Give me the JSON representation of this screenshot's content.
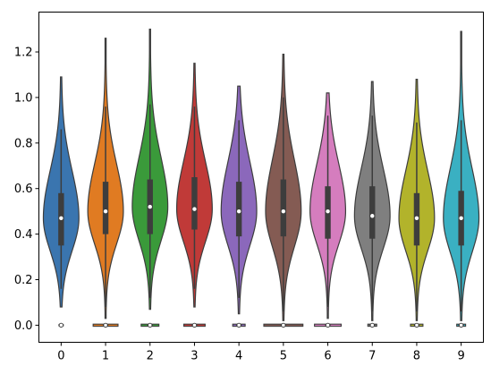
{
  "chart_data": {
    "type": "violin",
    "title": "",
    "xlabel": "",
    "ylabel": "",
    "categories": [
      "0",
      "1",
      "2",
      "3",
      "4",
      "5",
      "6",
      "7",
      "8",
      "9"
    ],
    "xlim": [
      -0.5,
      9.5
    ],
    "ylim": [
      -0.075,
      1.375
    ],
    "yticks": [
      0.0,
      0.2,
      0.4,
      0.6,
      0.8,
      1.0,
      1.2
    ],
    "ytick_labels": [
      "0.0",
      "0.2",
      "0.4",
      "0.6",
      "0.8",
      "1.0",
      "1.2"
    ],
    "grid": false,
    "legend": "none",
    "colors": [
      "#3a75af",
      "#e07b22",
      "#3a9a3a",
      "#c03a38",
      "#8b68bb",
      "#845b53",
      "#d57dbe",
      "#7f7f7f",
      "#b2b32b",
      "#3ab0c2"
    ],
    "violins": [
      {
        "category": "0",
        "min": 0.08,
        "max": 1.09,
        "q1": 0.35,
        "median": 0.47,
        "q3": 0.58,
        "whisker_low": 0.16,
        "whisker_high": 0.86,
        "zero_cluster_halfwidth": 0.0
      },
      {
        "category": "1",
        "min": 0.03,
        "max": 1.26,
        "q1": 0.4,
        "median": 0.5,
        "q3": 0.63,
        "whisker_low": 0.08,
        "whisker_high": 0.96,
        "zero_cluster_halfwidth": 0.28
      },
      {
        "category": "2",
        "min": 0.07,
        "max": 1.3,
        "q1": 0.4,
        "median": 0.52,
        "q3": 0.64,
        "whisker_low": 0.12,
        "whisker_high": 0.97,
        "zero_cluster_halfwidth": 0.2
      },
      {
        "category": "3",
        "min": 0.08,
        "max": 1.15,
        "q1": 0.42,
        "median": 0.51,
        "q3": 0.65,
        "whisker_low": 0.16,
        "whisker_high": 0.96,
        "zero_cluster_halfwidth": 0.24
      },
      {
        "category": "4",
        "min": 0.05,
        "max": 1.05,
        "q1": 0.39,
        "median": 0.5,
        "q3": 0.63,
        "whisker_low": 0.12,
        "whisker_high": 0.9,
        "zero_cluster_halfwidth": 0.14
      },
      {
        "category": "5",
        "min": 0.02,
        "max": 1.19,
        "q1": 0.39,
        "median": 0.5,
        "q3": 0.64,
        "whisker_low": 0.06,
        "whisker_high": 1.0,
        "zero_cluster_halfwidth": 0.44
      },
      {
        "category": "6",
        "min": 0.03,
        "max": 1.02,
        "q1": 0.38,
        "median": 0.5,
        "q3": 0.61,
        "whisker_low": 0.08,
        "whisker_high": 0.92,
        "zero_cluster_halfwidth": 0.3
      },
      {
        "category": "7",
        "min": 0.02,
        "max": 1.07,
        "q1": 0.38,
        "median": 0.48,
        "q3": 0.61,
        "whisker_low": 0.06,
        "whisker_high": 0.92,
        "zero_cluster_halfwidth": 0.1
      },
      {
        "category": "8",
        "min": 0.02,
        "max": 1.08,
        "q1": 0.35,
        "median": 0.47,
        "q3": 0.58,
        "whisker_low": 0.06,
        "whisker_high": 0.89,
        "zero_cluster_halfwidth": 0.14
      },
      {
        "category": "9",
        "min": 0.02,
        "max": 1.29,
        "q1": 0.35,
        "median": 0.47,
        "q3": 0.59,
        "whisker_low": 0.06,
        "whisker_high": 0.9,
        "zero_cluster_halfwidth": 0.1
      }
    ]
  }
}
